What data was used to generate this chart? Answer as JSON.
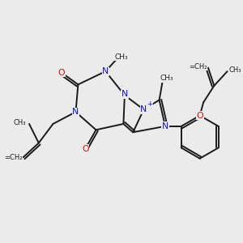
{
  "background_color": "#ebebeb",
  "bond_color": "#1a1a1a",
  "nitrogen_color": "#1111cc",
  "oxygen_color": "#cc1111",
  "fig_width": 3.0,
  "fig_height": 3.0,
  "dpi": 100,
  "xlim": [
    0,
    10
  ],
  "ylim": [
    0,
    10
  ],
  "bond_lw": 1.4,
  "font_size": 7.8,
  "small_font_size": 6.5
}
